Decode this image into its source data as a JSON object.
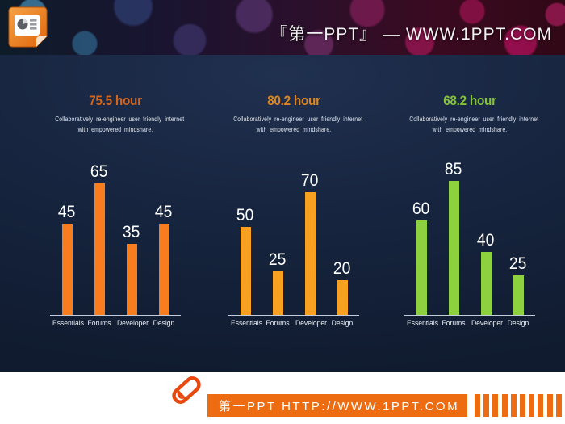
{
  "header": {
    "brand_text": "『第一PPT』 — WWW.1PPT.COM",
    "logo_icon": "powerpoint-slide-icon"
  },
  "chart_data": [
    {
      "type": "bar",
      "title": "75.5 hour",
      "subtitle_line1": "Collaboratively re-engineer user friendly internet",
      "subtitle_line2": "with empowered mindshare.",
      "categories": [
        "Essentials",
        "Forums",
        "Developer",
        "Design"
      ],
      "values": [
        45,
        65,
        35,
        45
      ],
      "ylim": [
        0,
        100
      ],
      "grid": false,
      "value_labels": true,
      "title_color": "#d2651c",
      "bar_color": "#f87d1f",
      "label_color": "#ffffff"
    },
    {
      "type": "bar",
      "title": "80.2 hour",
      "subtitle_line1": "Collaboratively re-engineer user friendly internet",
      "subtitle_line2": "with empowered mindshare.",
      "categories": [
        "Essentials",
        "Forums",
        "Developer",
        "Design"
      ],
      "values": [
        50,
        25,
        70,
        20
      ],
      "ylim": [
        0,
        115
      ],
      "grid": false,
      "value_labels": true,
      "title_color": "#dd861f",
      "bar_color": "#f8a01f",
      "label_color": "#ffffff"
    },
    {
      "type": "bar",
      "title": "68.2 hour",
      "subtitle_line1": "Collaboratively re-engineer user friendly internet",
      "subtitle_line2": "with empowered mindshare.",
      "categories": [
        "Essentials",
        "Forums",
        "Developer",
        "Design"
      ],
      "values": [
        60,
        85,
        40,
        25
      ],
      "ylim": [
        0,
        128
      ],
      "grid": false,
      "value_labels": true,
      "title_color": "#84c23a",
      "bar_color": "#8ed13f",
      "label_color": "#ffffff"
    }
  ],
  "footer": {
    "site_text": "第一PPT HTTP://WWW.1PPT.COM",
    "bar_color": "#ed6c11",
    "stripe_color": "#ed6c11",
    "stripe_count": 10,
    "pill_icon": "pill-icon"
  }
}
